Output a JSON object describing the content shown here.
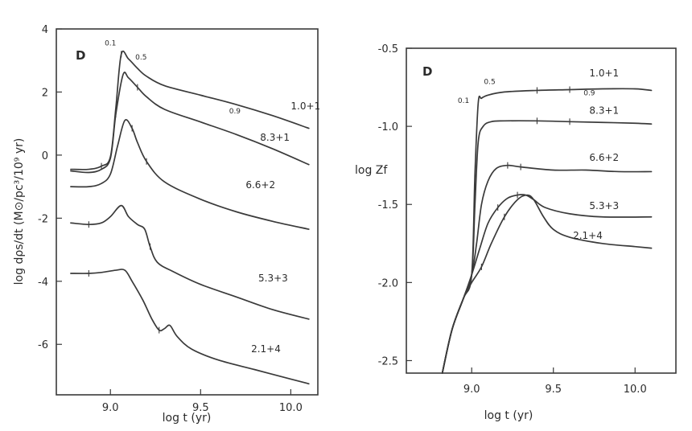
{
  "chart_data": [
    {
      "type": "line",
      "panel": "D",
      "xlabel": "log t (yr)",
      "ylabel": "log dρs/dt (M⊙/pc³/10⁹ yr)",
      "xlim": [
        8.7,
        10.15
      ],
      "ylim": [
        -7.6,
        4.0
      ],
      "x_ticks": [
        9.0,
        9.5,
        10.0
      ],
      "x_tick_labels": [
        "9.0",
        "9.5",
        "10.0"
      ],
      "y_ticks": [
        4,
        2,
        0,
        -2,
        -4,
        -6
      ],
      "y_tick_labels": [
        "4",
        "2",
        "0",
        "-2",
        "-4",
        "-6"
      ],
      "series": [
        {
          "name": "1.0+1",
          "x": [
            8.78,
            8.88,
            8.95,
            9.0,
            9.03,
            9.06,
            9.1,
            9.15,
            9.2,
            9.3,
            9.5,
            9.7,
            9.9,
            10.1
          ],
          "y": [
            -0.45,
            -0.45,
            -0.35,
            -0.05,
            1.5,
            3.2,
            3.05,
            2.75,
            2.5,
            2.2,
            1.9,
            1.6,
            1.25,
            0.85
          ]
        },
        {
          "name": "8.3+1",
          "x": [
            8.78,
            8.88,
            8.95,
            9.0,
            9.03,
            9.07,
            9.1,
            9.15,
            9.2,
            9.3,
            9.5,
            9.7,
            9.9,
            10.1
          ],
          "y": [
            -0.5,
            -0.55,
            -0.45,
            -0.1,
            1.3,
            2.55,
            2.45,
            2.15,
            1.85,
            1.45,
            1.05,
            0.65,
            0.2,
            -0.3
          ]
        },
        {
          "name": "6.6+2",
          "x": [
            8.78,
            8.88,
            8.95,
            9.0,
            9.04,
            9.08,
            9.12,
            9.15,
            9.2,
            9.3,
            9.5,
            9.7,
            9.9,
            10.1
          ],
          "y": [
            -1.0,
            -1.0,
            -0.9,
            -0.6,
            0.3,
            1.1,
            0.85,
            0.4,
            -0.2,
            -0.85,
            -1.4,
            -1.8,
            -2.1,
            -2.35
          ]
        },
        {
          "name": "5.3+3",
          "x": [
            8.78,
            8.88,
            8.95,
            9.0,
            9.06,
            9.1,
            9.15,
            9.19,
            9.22,
            9.26,
            9.35,
            9.5,
            9.7,
            9.9,
            10.1
          ],
          "y": [
            -2.15,
            -2.2,
            -2.15,
            -1.95,
            -1.6,
            -1.95,
            -2.2,
            -2.35,
            -2.9,
            -3.4,
            -3.7,
            -4.1,
            -4.5,
            -4.9,
            -5.2
          ]
        },
        {
          "name": "2.1+4",
          "x": [
            8.78,
            8.88,
            8.95,
            9.03,
            9.08,
            9.12,
            9.18,
            9.23,
            9.27,
            9.3,
            9.33,
            9.37,
            9.45,
            9.6,
            9.8,
            10.0,
            10.1
          ],
          "y": [
            -3.75,
            -3.75,
            -3.72,
            -3.65,
            -3.65,
            -4.0,
            -4.6,
            -5.2,
            -5.55,
            -5.5,
            -5.4,
            -5.75,
            -6.15,
            -6.5,
            -6.8,
            -7.1,
            -7.25
          ]
        }
      ],
      "annotations": [
        {
          "text": "0.1",
          "x": 9.0,
          "y": 3.4
        },
        {
          "text": "0.5",
          "x": 9.17,
          "y": 2.95
        },
        {
          "text": "0.9",
          "x": 9.69,
          "y": 1.25
        }
      ],
      "grid": false
    },
    {
      "type": "line",
      "panel": "D",
      "xlabel": "log t (yr)",
      "ylabel": "log Zf",
      "xlim": [
        8.6,
        10.25
      ],
      "ylim": [
        -2.58,
        -0.5
      ],
      "x_ticks": [
        9.0,
        9.5,
        10.0
      ],
      "x_tick_labels": [
        "9.0",
        "9.5",
        "10.0"
      ],
      "y_ticks": [
        -0.5,
        -1.0,
        -1.5,
        -2.0,
        -2.5
      ],
      "y_tick_labels": [
        "-0.5",
        "-1.0",
        "-1.5",
        "-2.0",
        "-2.5"
      ],
      "series": [
        {
          "name": "1.0+1",
          "x": [
            8.82,
            8.88,
            8.95,
            9.0,
            9.02,
            9.04,
            9.06,
            9.1,
            9.2,
            9.4,
            9.6,
            9.8,
            10.0,
            10.1
          ],
          "y": [
            -2.58,
            -2.3,
            -2.1,
            -1.95,
            -1.3,
            -0.85,
            -0.82,
            -0.8,
            -0.78,
            -0.77,
            -0.765,
            -0.76,
            -0.76,
            -0.77
          ]
        },
        {
          "name": "8.3+1",
          "x": [
            8.82,
            8.88,
            8.95,
            9.0,
            9.02,
            9.04,
            9.07,
            9.12,
            9.2,
            9.4,
            9.6,
            9.8,
            10.0,
            10.1
          ],
          "y": [
            -2.58,
            -2.3,
            -2.1,
            -1.95,
            -1.5,
            -1.1,
            -1.0,
            -0.97,
            -0.965,
            -0.965,
            -0.97,
            -0.975,
            -0.98,
            -0.985
          ]
        },
        {
          "name": "6.6+2",
          "x": [
            8.82,
            8.88,
            8.95,
            9.0,
            9.03,
            9.06,
            9.1,
            9.15,
            9.22,
            9.3,
            9.5,
            9.7,
            9.9,
            10.1
          ],
          "y": [
            -2.58,
            -2.3,
            -2.1,
            -1.95,
            -1.75,
            -1.5,
            -1.35,
            -1.27,
            -1.25,
            -1.26,
            -1.28,
            -1.28,
            -1.29,
            -1.29
          ]
        },
        {
          "name": "5.3+3",
          "x": [
            8.82,
            8.88,
            8.95,
            9.0,
            9.05,
            9.1,
            9.16,
            9.22,
            9.28,
            9.33,
            9.38,
            9.45,
            9.6,
            9.8,
            10.1
          ],
          "y": [
            -2.58,
            -2.3,
            -2.1,
            -1.95,
            -1.78,
            -1.62,
            -1.52,
            -1.46,
            -1.44,
            -1.44,
            -1.47,
            -1.52,
            -1.56,
            -1.58,
            -1.58
          ]
        },
        {
          "name": "2.1+4",
          "x": [
            8.82,
            8.88,
            8.95,
            9.0,
            9.06,
            9.12,
            9.2,
            9.28,
            9.34,
            9.38,
            9.44,
            9.5,
            9.6,
            9.8,
            10.0,
            10.1
          ],
          "y": [
            -2.58,
            -2.3,
            -2.1,
            -2.0,
            -1.9,
            -1.75,
            -1.58,
            -1.47,
            -1.44,
            -1.47,
            -1.58,
            -1.66,
            -1.71,
            -1.75,
            -1.77,
            -1.78
          ]
        }
      ],
      "annotations": [
        {
          "text": "0.1",
          "x": 8.95,
          "y": -0.85
        },
        {
          "text": "0.5",
          "x": 9.11,
          "y": -0.73
        },
        {
          "text": "0.9",
          "x": 9.72,
          "y": -0.8
        }
      ],
      "grid": false
    }
  ]
}
